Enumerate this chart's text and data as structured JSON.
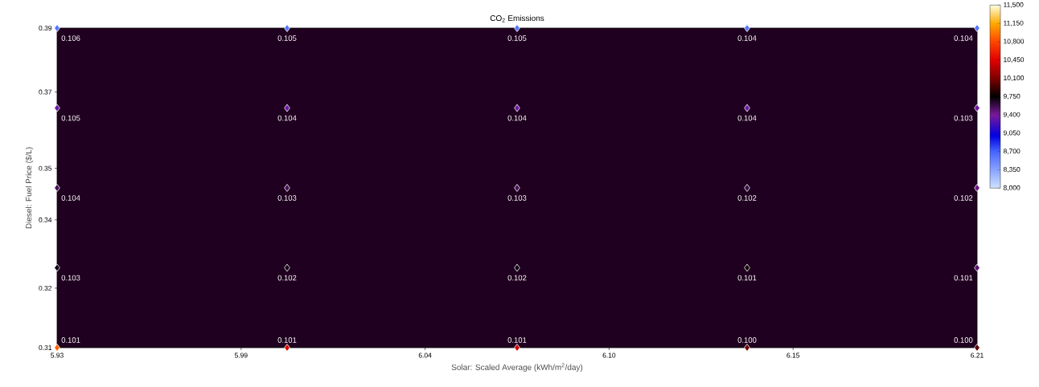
{
  "chart_data": {
    "type": "scatter",
    "title": "CO$_{2}$ Emissions",
    "xlabel": "Solar: Scaled Average (kWh/m$^{2}$/day)",
    "ylabel": "Diesel: Fuel Price ($/L)",
    "x": [
      5.93,
      6.0,
      6.07,
      6.14,
      6.21,
      5.93,
      6.0,
      6.07,
      6.14,
      6.21,
      5.93,
      6.0,
      6.07,
      6.14,
      6.21,
      5.93,
      6.0,
      6.07,
      6.14,
      6.21,
      5.93,
      6.0,
      6.07,
      6.14,
      6.21
    ],
    "values": [
      0.39,
      0.39,
      0.39,
      0.39,
      0.39,
      0.37,
      0.37,
      0.37,
      0.37,
      0.37,
      0.35,
      0.35,
      0.35,
      0.35,
      0.35,
      0.33,
      0.33,
      0.33,
      0.33,
      0.33,
      0.31,
      0.31,
      0.31,
      0.31,
      0.31
    ],
    "cvalues": [
      8600,
      8600,
      8600,
      8600,
      8600,
      9350,
      9350,
      9350,
      9350,
      9350,
      9550,
      9550,
      9550,
      9600,
      9450,
      9700,
      9700,
      9700,
      9800,
      9500,
      10900,
      10450,
      10400,
      10050,
      10000
    ],
    "annotations": [
      {
        "text": "0.106",
        "x": 5.93,
        "y": 0.39
      },
      {
        "text": "0.105",
        "x": 6.0,
        "y": 0.39
      },
      {
        "text": "0.105",
        "x": 6.07,
        "y": 0.39
      },
      {
        "text": "0.104",
        "x": 6.14,
        "y": 0.39
      },
      {
        "text": "0.104",
        "x": 6.21,
        "y": 0.39
      },
      {
        "text": "0.105",
        "x": 5.93,
        "y": 0.37
      },
      {
        "text": "0.104",
        "x": 6.0,
        "y": 0.37
      },
      {
        "text": "0.104",
        "x": 6.07,
        "y": 0.37
      },
      {
        "text": "0.104",
        "x": 6.14,
        "y": 0.37
      },
      {
        "text": "0.103",
        "x": 6.21,
        "y": 0.37
      },
      {
        "text": "0.104",
        "x": 5.93,
        "y": 0.35
      },
      {
        "text": "0.103",
        "x": 6.0,
        "y": 0.35
      },
      {
        "text": "0.103",
        "x": 6.07,
        "y": 0.35
      },
      {
        "text": "0.102",
        "x": 6.14,
        "y": 0.35
      },
      {
        "text": "0.102",
        "x": 6.21,
        "y": 0.35
      },
      {
        "text": "0.103",
        "x": 5.93,
        "y": 0.33
      },
      {
        "text": "0.102",
        "x": 6.0,
        "y": 0.33
      },
      {
        "text": "0.102",
        "x": 6.07,
        "y": 0.33
      },
      {
        "text": "0.101",
        "x": 6.14,
        "y": 0.33
      },
      {
        "text": "0.101",
        "x": 6.21,
        "y": 0.33
      },
      {
        "text": "0.101",
        "x": 5.93,
        "y": 0.31
      },
      {
        "text": "0.101",
        "x": 6.0,
        "y": 0.31
      },
      {
        "text": "0.101",
        "x": 6.07,
        "y": 0.31
      },
      {
        "text": "0.100",
        "x": 6.14,
        "y": 0.31
      },
      {
        "text": "0.100",
        "x": 6.21,
        "y": 0.31
      }
    ],
    "xlim": [
      5.93,
      6.21
    ],
    "xticks": [
      5.93,
      {
        "value": 5.986,
        "label": "5.99"
      },
      {
        "value": 6.042,
        "label": "6.04"
      },
      {
        "value": 6.098,
        "label": "6.10"
      },
      {
        "value": 6.154,
        "label": "6.15"
      },
      6.21
    ],
    "ylim": [
      0.31,
      0.39
    ],
    "yticks": [
      0.31,
      {
        "value": 0.3249,
        "label": "0.32"
      },
      {
        "value": 0.342,
        "label": "0.34"
      },
      {
        "value": 0.3549,
        "label": "0.35"
      },
      {
        "value": 0.374,
        "label": "0.37"
      },
      0.39
    ],
    "clim": [
      8000,
      11500
    ],
    "cticks": [
      {
        "value": 8000,
        "label": "8,000"
      },
      {
        "value": 8350,
        "label": "8,350"
      },
      {
        "value": 8700,
        "label": "8,700"
      },
      {
        "value": 9050,
        "label": "9,050"
      },
      {
        "value": 9400,
        "label": "9,400"
      },
      {
        "value": 9750,
        "label": "9,750"
      },
      {
        "value": 10100,
        "label": "10,100"
      },
      {
        "value": 10450,
        "label": "10,450"
      },
      {
        "value": 10800,
        "label": "10,800"
      },
      {
        "value": 11150,
        "label": "11,150"
      },
      {
        "value": 11500,
        "label": "11,500"
      }
    ],
    "marker": "diamond"
  }
}
